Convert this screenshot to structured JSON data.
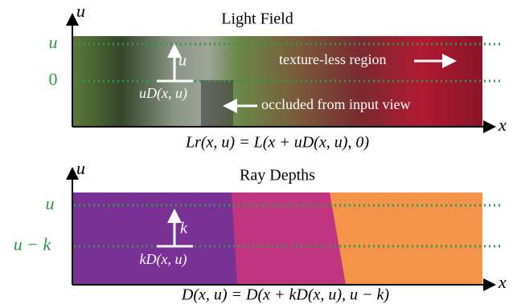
{
  "panels": [
    {
      "title": "Light Field",
      "y_axis": "u",
      "x_axis": "x",
      "levels": [
        "u",
        "0"
      ],
      "annotations": [
        "u",
        "uD(x, u)",
        "texture-less region",
        "occluded from input view"
      ],
      "equation": "Lr(x, u) = L(x + uD(x, u), 0)"
    },
    {
      "title": "Ray Depths",
      "y_axis": "u",
      "x_axis": "x",
      "levels": [
        "u",
        "u − k"
      ],
      "annotations": [
        "k",
        "kD(x, u)"
      ],
      "equation": "D(x, u) = D(x + kD(x, u), u − k)"
    }
  ]
}
